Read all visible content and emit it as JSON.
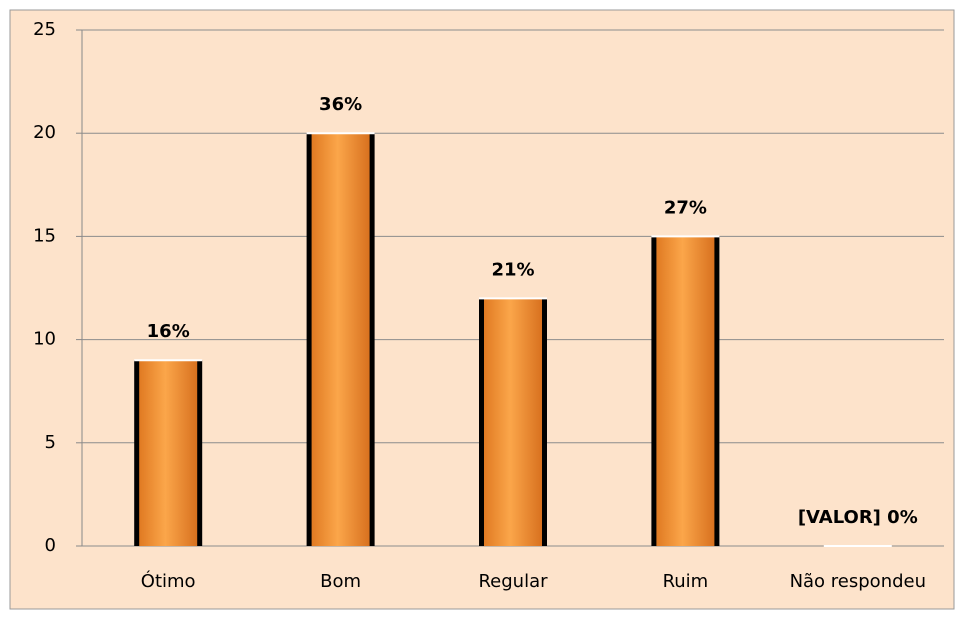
{
  "chart_data": {
    "type": "bar",
    "categories": [
      "Ótimo",
      "Bom",
      "Regular",
      "Ruim",
      "Não respondeu"
    ],
    "values": [
      9,
      20,
      12,
      15,
      0
    ],
    "bar_labels": [
      "16%",
      "36%",
      "21%",
      "27%",
      "[VALOR] 0%"
    ],
    "color": "#f39a3c",
    "ylim": [
      0,
      25
    ],
    "yticks": [
      0,
      5,
      10,
      15,
      20,
      25
    ],
    "grid": true
  }
}
